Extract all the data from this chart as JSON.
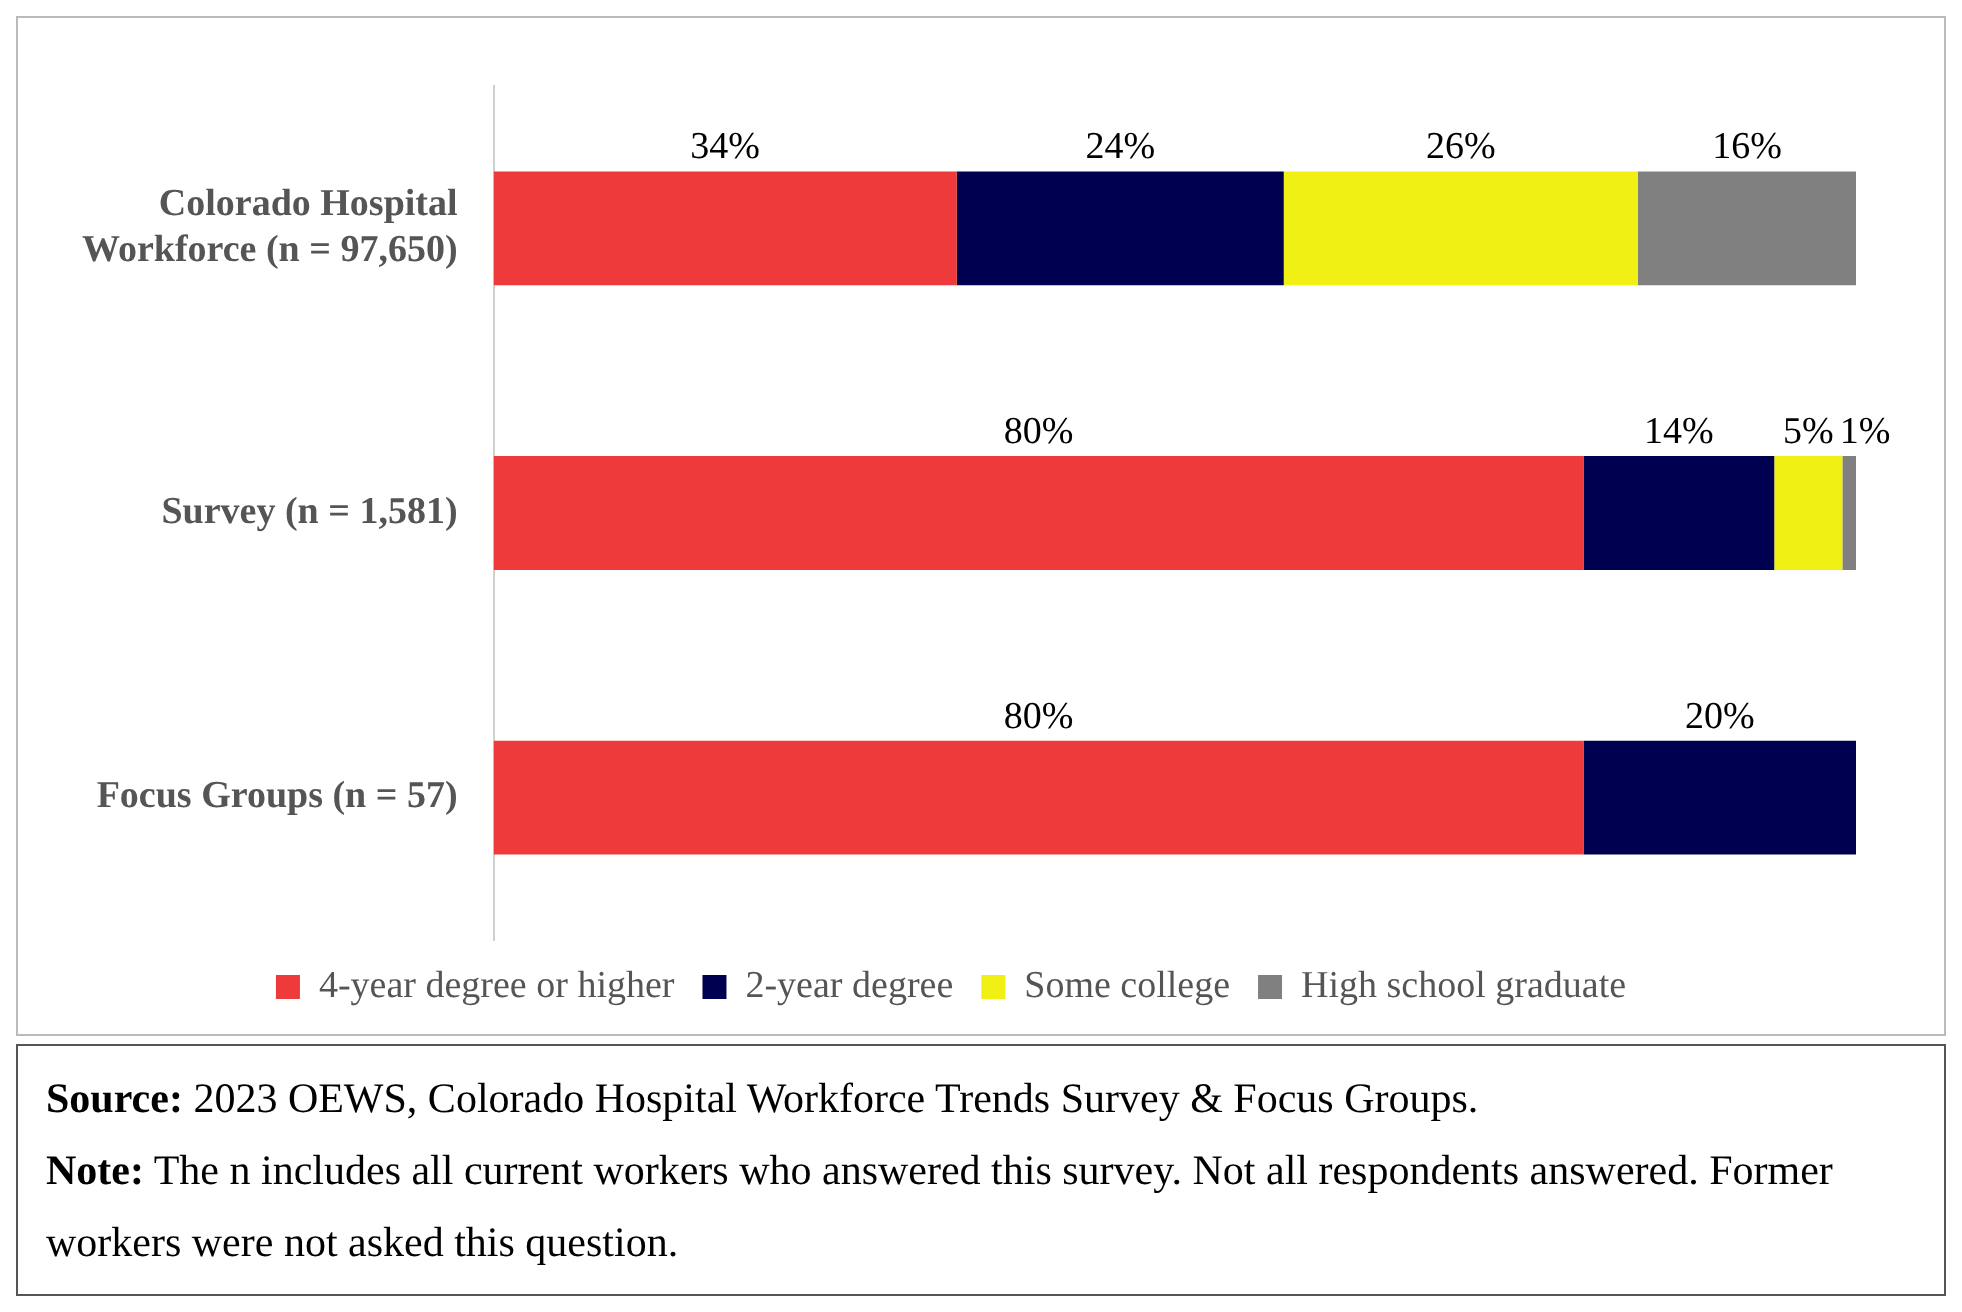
{
  "chart_data": {
    "type": "bar",
    "orientation": "horizontal",
    "stacked": true,
    "categories": [
      "Colorado Hospital Workforce (n = 97,650)",
      "Survey (n = 1,581)",
      "Focus Groups (n = 57)"
    ],
    "series": [
      {
        "name": "4-year degree or higher",
        "color": "#ee3a3a",
        "values": [
          34,
          80,
          80
        ],
        "value_labels": [
          "34%",
          "80%",
          "80%"
        ]
      },
      {
        "name": "2-year degree",
        "color": "#000050",
        "values": [
          24,
          14,
          20
        ],
        "value_labels": [
          "24%",
          "14%",
          "20%"
        ]
      },
      {
        "name": "Some college",
        "color": "#f0f014",
        "values": [
          26,
          5,
          null
        ],
        "value_labels": [
          "26%",
          "5%",
          null
        ]
      },
      {
        "name": "High school graduate",
        "color": "#808080",
        "values": [
          16,
          1,
          null
        ],
        "value_labels": [
          "16%",
          "1%",
          null
        ]
      }
    ],
    "legend": "bottom",
    "grid": false,
    "tick_labels": "y",
    "annotations": [
      "Source: 2023 OEWS, Colorado Hospital Workforce Trends Survey & Focus Groups.",
      "Note: The n includes all current workers who answered this survey. Not all respondents answered. Former workers were not asked this question."
    ]
  }
}
